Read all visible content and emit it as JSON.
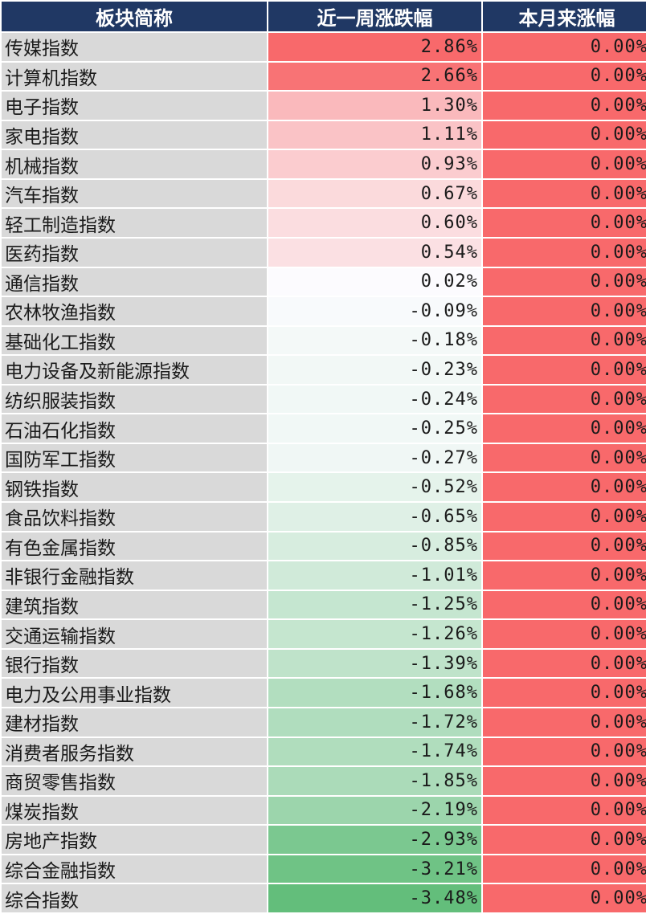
{
  "chart_data": {
    "type": "table",
    "columns": [
      "板块简称",
      "近一周涨跌幅",
      "本月来涨幅"
    ],
    "rows": [
      {
        "name": "传媒指数",
        "week": "2.86%",
        "month": "0.00%",
        "week_value": 2.86,
        "month_value": 0.0
      },
      {
        "name": "计算机指数",
        "week": "2.66%",
        "month": "0.00%",
        "week_value": 2.66,
        "month_value": 0.0
      },
      {
        "name": "电子指数",
        "week": "1.30%",
        "month": "0.00%",
        "week_value": 1.3,
        "month_value": 0.0
      },
      {
        "name": "家电指数",
        "week": "1.11%",
        "month": "0.00%",
        "week_value": 1.11,
        "month_value": 0.0
      },
      {
        "name": "机械指数",
        "week": "0.93%",
        "month": "0.00%",
        "week_value": 0.93,
        "month_value": 0.0
      },
      {
        "name": "汽车指数",
        "week": "0.67%",
        "month": "0.00%",
        "week_value": 0.67,
        "month_value": 0.0
      },
      {
        "name": "轻工制造指数",
        "week": "0.60%",
        "month": "0.00%",
        "week_value": 0.6,
        "month_value": 0.0
      },
      {
        "name": "医药指数",
        "week": "0.54%",
        "month": "0.00%",
        "week_value": 0.54,
        "month_value": 0.0
      },
      {
        "name": "通信指数",
        "week": "0.02%",
        "month": "0.00%",
        "week_value": 0.02,
        "month_value": 0.0
      },
      {
        "name": "农林牧渔指数",
        "week": "-0.09%",
        "month": "0.00%",
        "week_value": -0.09,
        "month_value": 0.0
      },
      {
        "name": "基础化工指数",
        "week": "-0.18%",
        "month": "0.00%",
        "week_value": -0.18,
        "month_value": 0.0
      },
      {
        "name": "电力设备及新能源指数",
        "week": "-0.23%",
        "month": "0.00%",
        "week_value": -0.23,
        "month_value": 0.0
      },
      {
        "name": "纺织服装指数",
        "week": "-0.24%",
        "month": "0.00%",
        "week_value": -0.24,
        "month_value": 0.0
      },
      {
        "name": "石油石化指数",
        "week": "-0.25%",
        "month": "0.00%",
        "week_value": -0.25,
        "month_value": 0.0
      },
      {
        "name": "国防军工指数",
        "week": "-0.27%",
        "month": "0.00%",
        "week_value": -0.27,
        "month_value": 0.0
      },
      {
        "name": "钢铁指数",
        "week": "-0.52%",
        "month": "0.00%",
        "week_value": -0.52,
        "month_value": 0.0
      },
      {
        "name": "食品饮料指数",
        "week": "-0.65%",
        "month": "0.00%",
        "week_value": -0.65,
        "month_value": 0.0
      },
      {
        "name": "有色金属指数",
        "week": "-0.85%",
        "month": "0.00%",
        "week_value": -0.85,
        "month_value": 0.0
      },
      {
        "name": "非银行金融指数",
        "week": "-1.01%",
        "month": "0.00%",
        "week_value": -1.01,
        "month_value": 0.0
      },
      {
        "name": "建筑指数",
        "week": "-1.25%",
        "month": "0.00%",
        "week_value": -1.25,
        "month_value": 0.0
      },
      {
        "name": "交通运输指数",
        "week": "-1.26%",
        "month": "0.00%",
        "week_value": -1.26,
        "month_value": 0.0
      },
      {
        "name": "银行指数",
        "week": "-1.39%",
        "month": "0.00%",
        "week_value": -1.39,
        "month_value": 0.0
      },
      {
        "name": "电力及公用事业指数",
        "week": "-1.68%",
        "month": "0.00%",
        "week_value": -1.68,
        "month_value": 0.0
      },
      {
        "name": "建材指数",
        "week": "-1.72%",
        "month": "0.00%",
        "week_value": -1.72,
        "month_value": 0.0
      },
      {
        "name": "消费者服务指数",
        "week": "-1.74%",
        "month": "0.00%",
        "week_value": -1.74,
        "month_value": 0.0
      },
      {
        "name": "商贸零售指数",
        "week": "-1.85%",
        "month": "0.00%",
        "week_value": -1.85,
        "month_value": 0.0
      },
      {
        "name": "煤炭指数",
        "week": "-2.19%",
        "month": "0.00%",
        "week_value": -2.19,
        "month_value": 0.0
      },
      {
        "name": "房地产指数",
        "week": "-2.93%",
        "month": "0.00%",
        "week_value": -2.93,
        "month_value": 0.0
      },
      {
        "name": "综合金融指数",
        "week": "-3.21%",
        "month": "0.00%",
        "week_value": -3.21,
        "month_value": 0.0
      },
      {
        "name": "综合指数",
        "week": "-3.48%",
        "month": "0.00%",
        "week_value": -3.48,
        "month_value": 0.0
      }
    ],
    "colors": {
      "header_bg": "#203864",
      "header_text": "#ffffff",
      "name_bg": "#d9d9d9",
      "positive_max": "#f8696b",
      "midpoint": "#fcfcff",
      "negative_max": "#63be7b",
      "month_fill": "#f8696b"
    }
  }
}
